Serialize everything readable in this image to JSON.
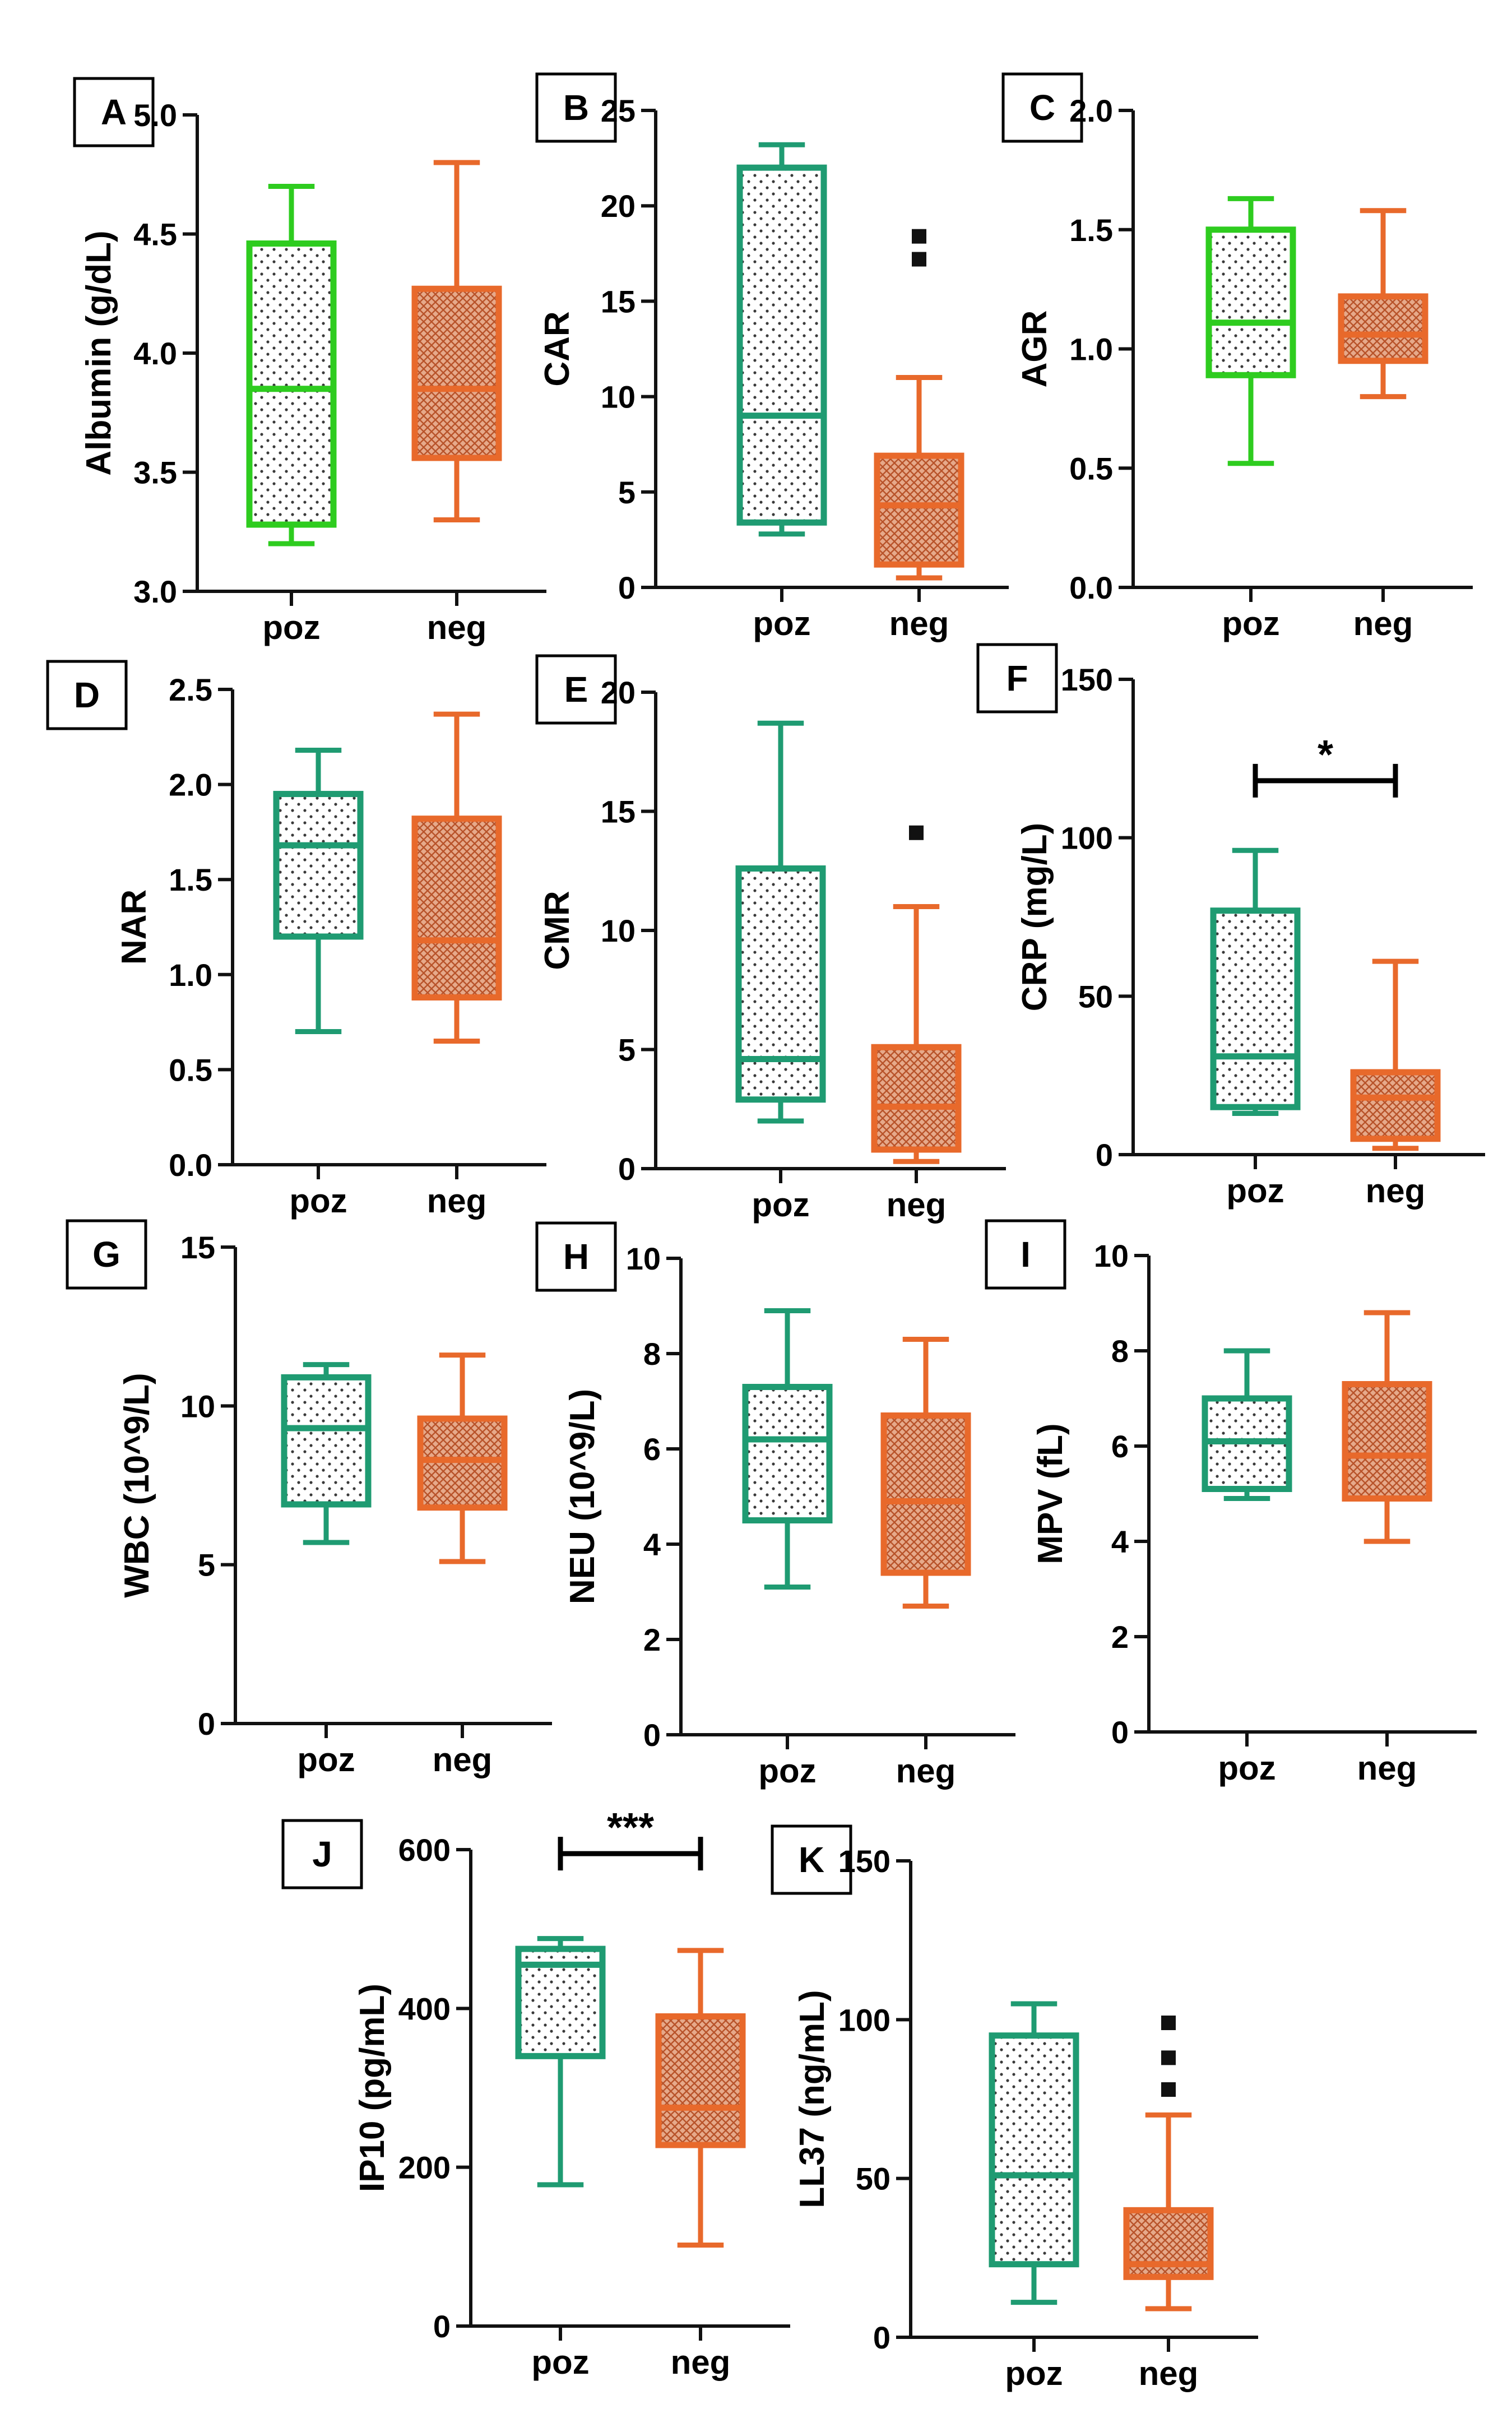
{
  "figure": {
    "background": "#ffffff"
  },
  "colors": {
    "light_green": "#2ecc1f",
    "teal_green": "#1f9b72",
    "orange": "#e8692b",
    "axis": "#111111",
    "outlier": "#111111"
  },
  "chart_data": [
    {
      "panel": "A",
      "type": "box",
      "ylabel": "Albumin (g/dL)",
      "ylim": [
        3.0,
        5.0
      ],
      "ticks": [
        3.0,
        3.5,
        4.0,
        4.5,
        5.0
      ],
      "tick_labels": [
        "3.0",
        "3.5",
        "4.0",
        "4.5",
        "5.0"
      ],
      "categories": [
        "poz",
        "neg"
      ],
      "boxes": [
        {
          "group": "poz",
          "color": "light_green",
          "pattern": "dots",
          "whisker_low": 3.2,
          "q1": 3.28,
          "median": 3.85,
          "q3": 4.46,
          "whisker_high": 4.7,
          "outliers": []
        },
        {
          "group": "neg",
          "color": "orange",
          "pattern": "mesh",
          "whisker_low": 3.3,
          "q1": 3.56,
          "median": 3.85,
          "q3": 4.27,
          "whisker_high": 4.8,
          "outliers": []
        }
      ],
      "significance": null
    },
    {
      "panel": "B",
      "type": "box",
      "ylabel": "CAR",
      "ylim": [
        0,
        25
      ],
      "ticks": [
        0,
        5,
        10,
        15,
        20,
        25
      ],
      "tick_labels": [
        "0",
        "5",
        "10",
        "15",
        "20",
        "25"
      ],
      "categories": [
        "poz",
        "neg"
      ],
      "boxes": [
        {
          "group": "poz",
          "color": "teal_green",
          "pattern": "dots",
          "whisker_low": 2.8,
          "q1": 3.4,
          "median": 9.0,
          "q3": 22.0,
          "whisker_high": 23.2,
          "outliers": []
        },
        {
          "group": "neg",
          "color": "orange",
          "pattern": "mesh",
          "whisker_low": 0.5,
          "q1": 1.2,
          "median": 4.3,
          "q3": 6.9,
          "whisker_high": 11.0,
          "outliers": [
            17.2,
            18.4
          ]
        }
      ],
      "significance": null
    },
    {
      "panel": "C",
      "type": "box",
      "ylabel": "AGR",
      "ylim": [
        0.0,
        2.0
      ],
      "ticks": [
        0.0,
        0.5,
        1.0,
        1.5,
        2.0
      ],
      "tick_labels": [
        "0.0",
        "0.5",
        "1.0",
        "1.5",
        "2.0"
      ],
      "categories": [
        "poz",
        "neg"
      ],
      "boxes": [
        {
          "group": "poz",
          "color": "light_green",
          "pattern": "dots",
          "whisker_low": 0.52,
          "q1": 0.89,
          "median": 1.11,
          "q3": 1.5,
          "whisker_high": 1.63,
          "outliers": []
        },
        {
          "group": "neg",
          "color": "orange",
          "pattern": "mesh",
          "whisker_low": 0.8,
          "q1": 0.95,
          "median": 1.06,
          "q3": 1.22,
          "whisker_high": 1.58,
          "outliers": []
        }
      ],
      "significance": null
    },
    {
      "panel": "D",
      "type": "box",
      "ylabel": "NAR",
      "ylim": [
        0.0,
        2.5
      ],
      "ticks": [
        0.0,
        0.5,
        1.0,
        1.5,
        2.0,
        2.5
      ],
      "tick_labels": [
        "0.0",
        "0.5",
        "1.0",
        "1.5",
        "2.0",
        "2.5"
      ],
      "categories": [
        "poz",
        "neg"
      ],
      "boxes": [
        {
          "group": "poz",
          "color": "teal_green",
          "pattern": "dots",
          "whisker_low": 0.7,
          "q1": 1.2,
          "median": 1.68,
          "q3": 1.95,
          "whisker_high": 2.18,
          "outliers": []
        },
        {
          "group": "neg",
          "color": "orange",
          "pattern": "mesh",
          "whisker_low": 0.65,
          "q1": 0.88,
          "median": 1.18,
          "q3": 1.82,
          "whisker_high": 2.37,
          "outliers": []
        }
      ],
      "significance": null
    },
    {
      "panel": "E",
      "type": "box",
      "ylabel": "CMR",
      "ylim": [
        0,
        20
      ],
      "ticks": [
        0,
        5,
        10,
        15,
        20
      ],
      "tick_labels": [
        "0",
        "5",
        "10",
        "15",
        "20"
      ],
      "categories": [
        "poz",
        "neg"
      ],
      "boxes": [
        {
          "group": "poz",
          "color": "teal_green",
          "pattern": "dots",
          "whisker_low": 2.0,
          "q1": 2.9,
          "median": 4.6,
          "q3": 12.6,
          "whisker_high": 18.7,
          "outliers": []
        },
        {
          "group": "neg",
          "color": "orange",
          "pattern": "mesh",
          "whisker_low": 0.3,
          "q1": 0.8,
          "median": 2.6,
          "q3": 5.1,
          "whisker_high": 11.0,
          "outliers": [
            14.1
          ]
        }
      ],
      "significance": null
    },
    {
      "panel": "F",
      "type": "box",
      "ylabel": "CRP (mg/L)",
      "ylim": [
        0,
        150
      ],
      "ticks": [
        0,
        50,
        100,
        150
      ],
      "tick_labels": [
        "0",
        "50",
        "100",
        "150"
      ],
      "categories": [
        "poz",
        "neg"
      ],
      "boxes": [
        {
          "group": "poz",
          "color": "teal_green",
          "pattern": "dots",
          "whisker_low": 13,
          "q1": 15,
          "median": 31,
          "q3": 77,
          "whisker_high": 96,
          "outliers": []
        },
        {
          "group": "neg",
          "color": "orange",
          "pattern": "mesh",
          "whisker_low": 2,
          "q1": 5,
          "median": 18,
          "q3": 26,
          "whisker_high": 61,
          "outliers": []
        }
      ],
      "significance": {
        "label": "*",
        "value": 118
      }
    },
    {
      "panel": "G",
      "type": "box",
      "ylabel": "WBC (10^9/L)",
      "ylim": [
        0,
        15
      ],
      "ticks": [
        0,
        5,
        10,
        15
      ],
      "tick_labels": [
        "0",
        "5",
        "10",
        "15"
      ],
      "categories": [
        "poz",
        "neg"
      ],
      "boxes": [
        {
          "group": "poz",
          "color": "teal_green",
          "pattern": "dots",
          "whisker_low": 5.7,
          "q1": 6.9,
          "median": 9.3,
          "q3": 10.9,
          "whisker_high": 11.3,
          "outliers": []
        },
        {
          "group": "neg",
          "color": "orange",
          "pattern": "mesh",
          "whisker_low": 5.1,
          "q1": 6.8,
          "median": 8.3,
          "q3": 9.6,
          "whisker_high": 11.6,
          "outliers": []
        }
      ],
      "significance": null
    },
    {
      "panel": "H",
      "type": "box",
      "ylabel": "NEU (10^9/L)",
      "ylim": [
        0,
        10
      ],
      "ticks": [
        0,
        2,
        4,
        6,
        8,
        10
      ],
      "tick_labels": [
        "0",
        "2",
        "4",
        "6",
        "8",
        "10"
      ],
      "categories": [
        "poz",
        "neg"
      ],
      "boxes": [
        {
          "group": "poz",
          "color": "teal_green",
          "pattern": "dots",
          "whisker_low": 3.1,
          "q1": 4.5,
          "median": 6.2,
          "q3": 7.3,
          "whisker_high": 8.9,
          "outliers": []
        },
        {
          "group": "neg",
          "color": "orange",
          "pattern": "mesh",
          "whisker_low": 2.7,
          "q1": 3.4,
          "median": 4.9,
          "q3": 6.7,
          "whisker_high": 8.3,
          "outliers": []
        }
      ],
      "significance": null
    },
    {
      "panel": "I",
      "type": "box",
      "ylabel": "MPV (fL)",
      "ylim": [
        0,
        10
      ],
      "ticks": [
        0,
        2,
        4,
        6,
        8,
        10
      ],
      "tick_labels": [
        "0",
        "2",
        "4",
        "6",
        "8",
        "10"
      ],
      "categories": [
        "poz",
        "neg"
      ],
      "boxes": [
        {
          "group": "poz",
          "color": "teal_green",
          "pattern": "dots",
          "whisker_low": 4.9,
          "q1": 5.1,
          "median": 6.1,
          "q3": 7.0,
          "whisker_high": 8.0,
          "outliers": []
        },
        {
          "group": "neg",
          "color": "orange",
          "pattern": "mesh",
          "whisker_low": 4.0,
          "q1": 4.9,
          "median": 5.8,
          "q3": 7.3,
          "whisker_high": 8.8,
          "outliers": []
        }
      ],
      "significance": null
    },
    {
      "panel": "J",
      "type": "box",
      "ylabel": "IP10 (pg/mL)",
      "ylim": [
        0,
        600
      ],
      "ticks": [
        0,
        200,
        400,
        600
      ],
      "tick_labels": [
        "0",
        "200",
        "400",
        "600"
      ],
      "categories": [
        "poz",
        "neg"
      ],
      "boxes": [
        {
          "group": "poz",
          "color": "teal_green",
          "pattern": "dots",
          "whisker_low": 178,
          "q1": 340,
          "median": 455,
          "q3": 475,
          "whisker_high": 488,
          "outliers": []
        },
        {
          "group": "neg",
          "color": "orange",
          "pattern": "mesh",
          "whisker_low": 102,
          "q1": 228,
          "median": 275,
          "q3": 390,
          "whisker_high": 473,
          "outliers": []
        }
      ],
      "significance": {
        "label": "***",
        "value": 595
      }
    },
    {
      "panel": "K",
      "type": "box",
      "ylabel": "LL37 (ng/mL)",
      "ylim": [
        0,
        150
      ],
      "ticks": [
        0,
        50,
        100,
        150
      ],
      "tick_labels": [
        "0",
        "50",
        "100",
        "150"
      ],
      "categories": [
        "poz",
        "neg"
      ],
      "boxes": [
        {
          "group": "poz",
          "color": "teal_green",
          "pattern": "dots",
          "whisker_low": 11,
          "q1": 23,
          "median": 51,
          "q3": 95,
          "whisker_high": 105,
          "outliers": []
        },
        {
          "group": "neg",
          "color": "orange",
          "pattern": "mesh",
          "whisker_low": 9,
          "q1": 19,
          "median": 23,
          "q3": 40,
          "whisker_high": 70,
          "outliers": [
            78,
            88,
            99
          ]
        }
      ],
      "significance": null
    }
  ]
}
